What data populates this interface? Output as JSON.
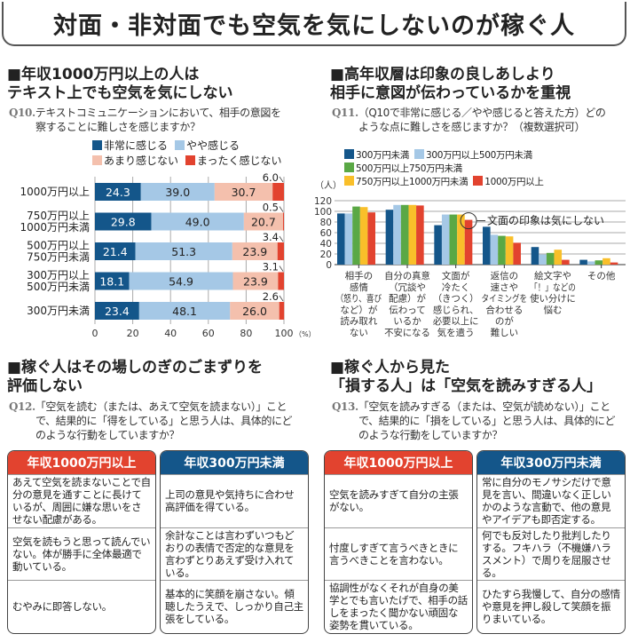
{
  "title": "対面・非対面でも空気を気にしないのが稼ぐ人",
  "colors": {
    "red": "#e2432f",
    "navy": "#14568a",
    "light_blue": "#a5c8e6",
    "pink": "#f4c0ad",
    "green": "#5aa845",
    "yellow": "#f9bf2a"
  },
  "s1": {
    "heading1": "■年収1000万円以上の人は",
    "heading2": "テキスト上でも空気を気にしない",
    "qnum": "Q10.",
    "q1": "テキストコミュニケーションにおいて、相手の意図を",
    "q2": "察することに難しさを感じますか？"
  },
  "s2": {
    "heading1": "■高年収層は印象の良しあしより",
    "heading2": "相手に意図が伝わっているかを重視",
    "qnum": "Q11.",
    "q1": "（Q10で非常に感じる／やや感じると答えた方）どの",
    "q2": "ような点に難しさを感じますか？（複数選択可）"
  },
  "s3": {
    "heading1": "■稼ぐ人はその場しのぎのごまずりを",
    "heading2": "評価しない",
    "qnum": "Q12.",
    "q1": "「空気を読む（または、あえて空気を読まない）」こと",
    "q2": "で、結果的に「得をしている」と思う人は、具体的にど",
    "q3": "のような行動をしていますか？",
    "tables": [
      {
        "header": "年収1000万円以上",
        "color": "#e2432f",
        "cells": [
          "あえて空気を読まないことで自分の意見を通すことに長けているが、周囲に嫌な思いをさせない配慮がある。",
          "空気を読もうと思って読んでいない。体が勝手に全体最適で動いている。",
          "むやみに即答しない。"
        ]
      },
      {
        "header": "年収300万円未満",
        "color": "#14568a",
        "cells": [
          "上司の意見や気持ちに合わせ高評価を得ている。",
          "余計なことは言わずいつもどおりの表情で否定的な意見を言わずとりあえず受け入れている。",
          "基本的に笑顔を崩さない。傾聴したうえで、しっかり自己主張をしている。"
        ]
      }
    ]
  },
  "s4": {
    "heading1": "■稼ぐ人から見た",
    "heading2": "「損する人」は「空気を読みすぎる人」",
    "qnum": "Q13.",
    "q1": "「空気を読みすぎる（または、空気が読めない）」こと",
    "q2": "で、結果的に「損をしている」と思う人は、具体的にど",
    "q3": "のような行動をしていますか？",
    "tables": [
      {
        "header": "年収1000万円以上",
        "color": "#e2432f",
        "cells": [
          "空気を読みすぎて自分の主張がない。",
          "忖度しすぎて言うべきときに言うべきことを言わない。",
          "協調性がなくそれが自身の美学とでも言いたげで、相手の話しをまったく聞かない頑固な姿勢を貫いている。"
        ]
      },
      {
        "header": "年収300万円未満",
        "color": "#14568a",
        "cells": [
          "常に自分のモノサシだけで意見を言い、間違いなく正しいかのような言動で、他の意見やアイデアも即否定する。",
          "何でも反対したり批判したりする。フキハラ（不機嫌ハラスメント）で周りを屈服させる。",
          "ひたすら我慢して、自分の感情や意見を押し殺して笑顔を振りまいている。"
        ]
      }
    ]
  },
  "chart_data": [
    {
      "type": "bar",
      "orientation": "horizontal",
      "stacked": true,
      "categories": [
        "1000万円以上",
        "750万円以上\n1000万円未満",
        "500万円以上\n750万円未満",
        "300万円以上\n500万円未満",
        "300万円未満"
      ],
      "series": [
        {
          "name": "非常に感じる",
          "color": "#14568a",
          "values": [
            24.3,
            29.8,
            21.4,
            18.1,
            23.4
          ]
        },
        {
          "name": "やや感じる",
          "color": "#a5c8e6",
          "values": [
            39.0,
            49.0,
            51.3,
            54.9,
            48.1
          ]
        },
        {
          "name": "あまり感じない",
          "color": "#f4c0ad",
          "values": [
            30.7,
            20.7,
            23.9,
            23.9,
            26.0
          ]
        },
        {
          "name": "まったく感じない",
          "color": "#e2432f",
          "values": [
            6.0,
            0.5,
            3.4,
            3.1,
            2.6
          ]
        }
      ],
      "xlim": [
        0,
        100
      ],
      "xticks": [
        "0",
        "20",
        "40",
        "60",
        "80",
        "100"
      ],
      "xunit": "（%）",
      "grid": true,
      "legend": "top"
    },
    {
      "type": "bar",
      "orientation": "vertical",
      "categories": [
        "相手の\n感情\n（怒り、喜び\nなど）が\n読み取れ\nない",
        "自分の真意\n（冗談や\n配慮）が\n伝わって\nいるか\n不安になる",
        "文面が\n冷たく\n（きつく）\n感じられ、\n必要以上に\n気を遣う",
        "返信の\n速さや\nタイミングを\n合わせる\nのが\n難しい",
        "絵文字や\n「！」などの\n使い分けに\n悩む",
        "その他"
      ],
      "series": [
        {
          "name": "300万円未満",
          "color": "#14568a",
          "values": [
            96,
            103,
            74,
            71,
            33,
            9
          ]
        },
        {
          "name": "300万円以上500万円未満",
          "color": "#a5c8e6",
          "values": [
            96,
            112,
            94,
            56,
            19,
            6
          ]
        },
        {
          "name": "500万円以上750万円未満",
          "color": "#5aa845",
          "values": [
            109,
            112,
            94,
            54,
            22,
            8
          ]
        },
        {
          "name": "750万円以上1000万円未満",
          "color": "#f9bf2a",
          "values": [
            108,
            112,
            94,
            53,
            28,
            12
          ]
        },
        {
          "name": "1000万円以上",
          "color": "#e2432f",
          "values": [
            98,
            111,
            84,
            41,
            9,
            4
          ]
        }
      ],
      "ylim": [
        0,
        120
      ],
      "yticks": [
        "0",
        "20",
        "40",
        "60",
        "80",
        "100",
        "120"
      ],
      "yunit": "（人）",
      "grid": true,
      "legend": "top",
      "annotation": "文面の印象は気にしない"
    }
  ]
}
